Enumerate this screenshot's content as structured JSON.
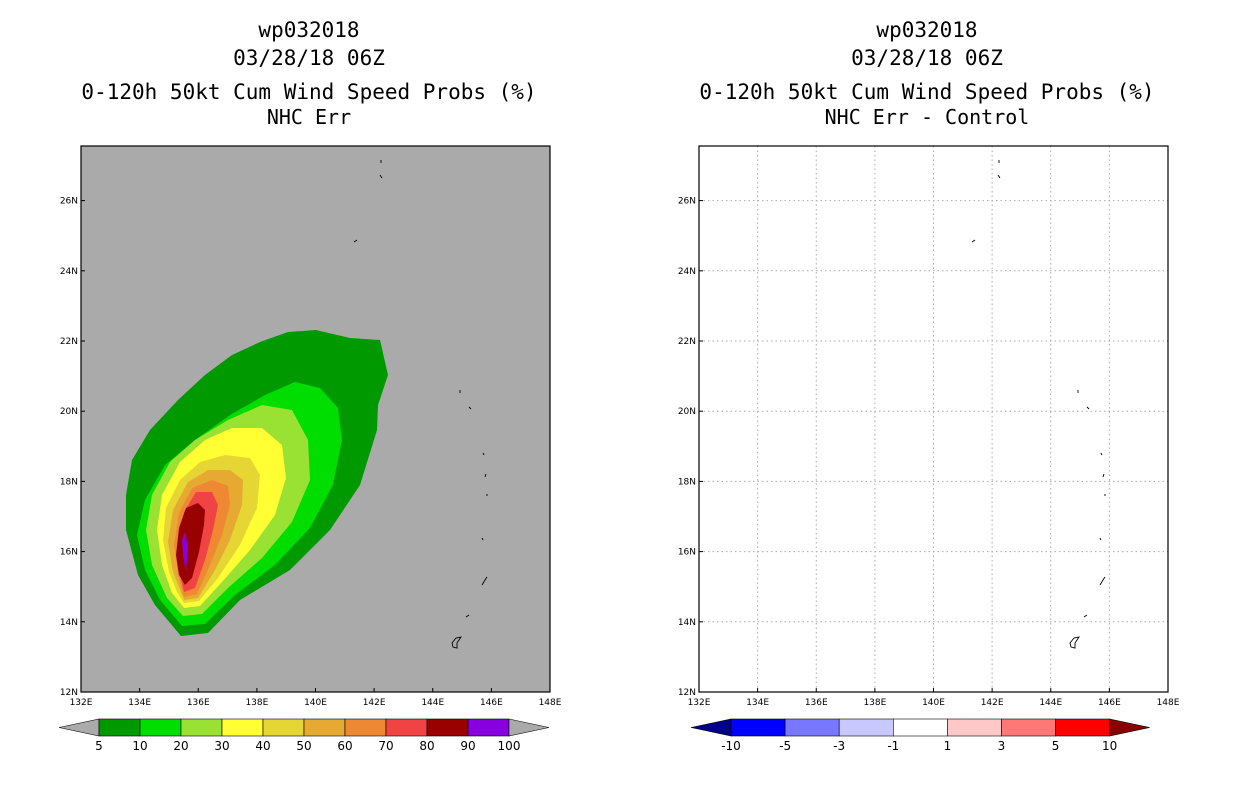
{
  "panels": [
    {
      "id": "left",
      "title1": "wp032018",
      "title2": "03/28/18 06Z",
      "title3": "0-120h 50kt Cum Wind Speed Probs (%)",
      "title4": "NHC Err",
      "background": "#aaaaaa",
      "colorbar": {
        "colors": [
          "#009900",
          "#00dd00",
          "#99e233",
          "#ffff33",
          "#e6d633",
          "#e6aa33",
          "#ee8833",
          "#f04444",
          "#990000",
          "#8800dd"
        ],
        "labels": [
          "5",
          "10",
          "20",
          "30",
          "40",
          "50",
          "60",
          "70",
          "80",
          "90",
          "100"
        ],
        "end_color_left": "#aaaaaa",
        "end_color_right": "#aaaaaa"
      }
    },
    {
      "id": "right",
      "title1": "wp032018",
      "title2": "03/28/18 06Z",
      "title3": "0-120h 50kt Cum Wind Speed Probs (%)",
      "title4": "NHC Err - Control",
      "background": "#ffffff",
      "colorbar": {
        "colors": [
          "#0000ff",
          "#7777ff",
          "#c8c8ff",
          "#ffffff",
          "#ffc8c8",
          "#ff7777",
          "#ff0000"
        ],
        "labels": [
          "-10",
          "-5",
          "-3",
          "-1",
          "1",
          "3",
          "5",
          "10"
        ],
        "end_color_left": "#000088",
        "end_color_right": "#880000"
      }
    }
  ],
  "axes": {
    "lon_labels": [
      "132E",
      "134E",
      "136E",
      "138E",
      "140E",
      "142E",
      "144E",
      "146E",
      "148E"
    ],
    "lat_labels": [
      "12N",
      "14N",
      "16N",
      "18N",
      "20N",
      "22N",
      "24N",
      "26N"
    ]
  },
  "probability_levels": [
    5,
    10,
    20,
    30,
    40,
    50,
    60,
    70,
    80,
    90
  ]
}
